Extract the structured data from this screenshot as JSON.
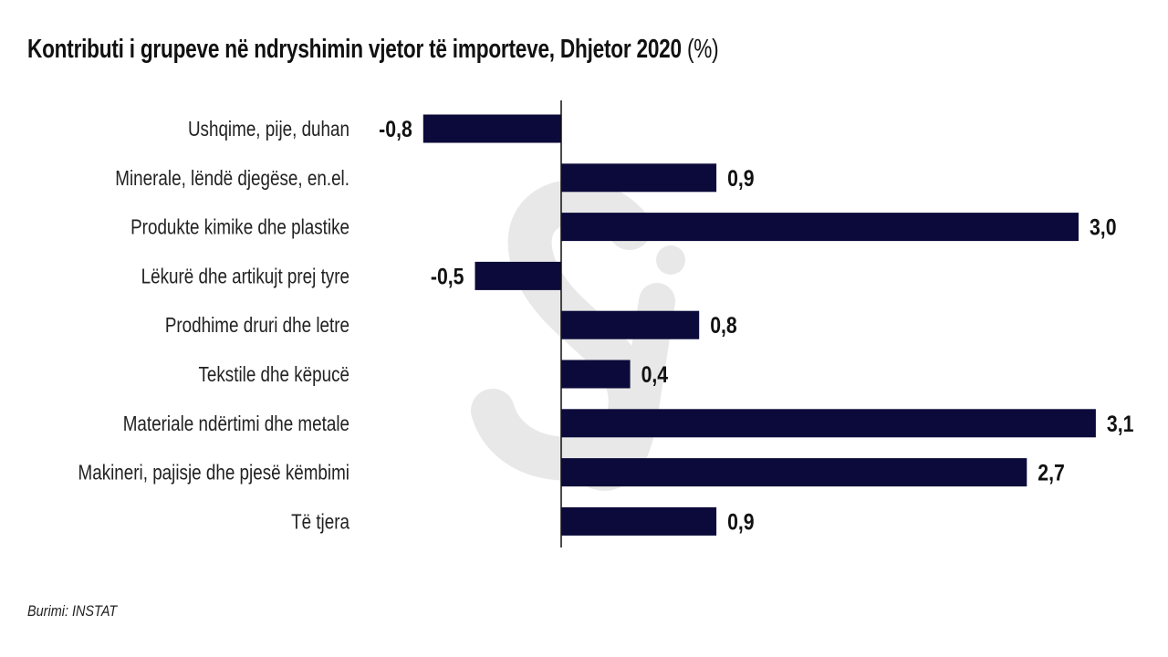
{
  "title": {
    "main": "Kontributi i grupeve në ndryshimin vjetor të importeve, Dhjetor 2020",
    "unit": "(%)"
  },
  "source": "Burimi: INSTAT",
  "watermark": "Sj",
  "colors": {
    "bar": "#0b0a3a",
    "axis": "#111111"
  },
  "chart_data": {
    "type": "bar",
    "orientation": "horizontal",
    "title": "Kontributi i grupeve në ndryshimin vjetor të importeve, Dhjetor 2020 (%)",
    "categories": [
      "Ushqime, pije, duhan",
      "Minerale, lëndë djegëse, en.el.",
      "Produkte kimike dhe plastike",
      "Lëkurë dhe artikujt prej tyre",
      "Prodhime druri dhe letre",
      "Tekstile dhe këpucë",
      "Materiale ndërtimi dhe metale",
      "Makineri, pajisje dhe pjesë këmbimi",
      "Të tjera"
    ],
    "values": [
      -0.8,
      0.9,
      3.0,
      -0.5,
      0.8,
      0.4,
      3.1,
      2.7,
      0.9
    ],
    "labels": [
      "-0,8",
      "0,9",
      "3,0",
      "-0,5",
      "0,8",
      "0,4",
      "3,1",
      "2,7",
      "0,9"
    ],
    "xlabel": "",
    "ylabel": "",
    "grid": false
  }
}
